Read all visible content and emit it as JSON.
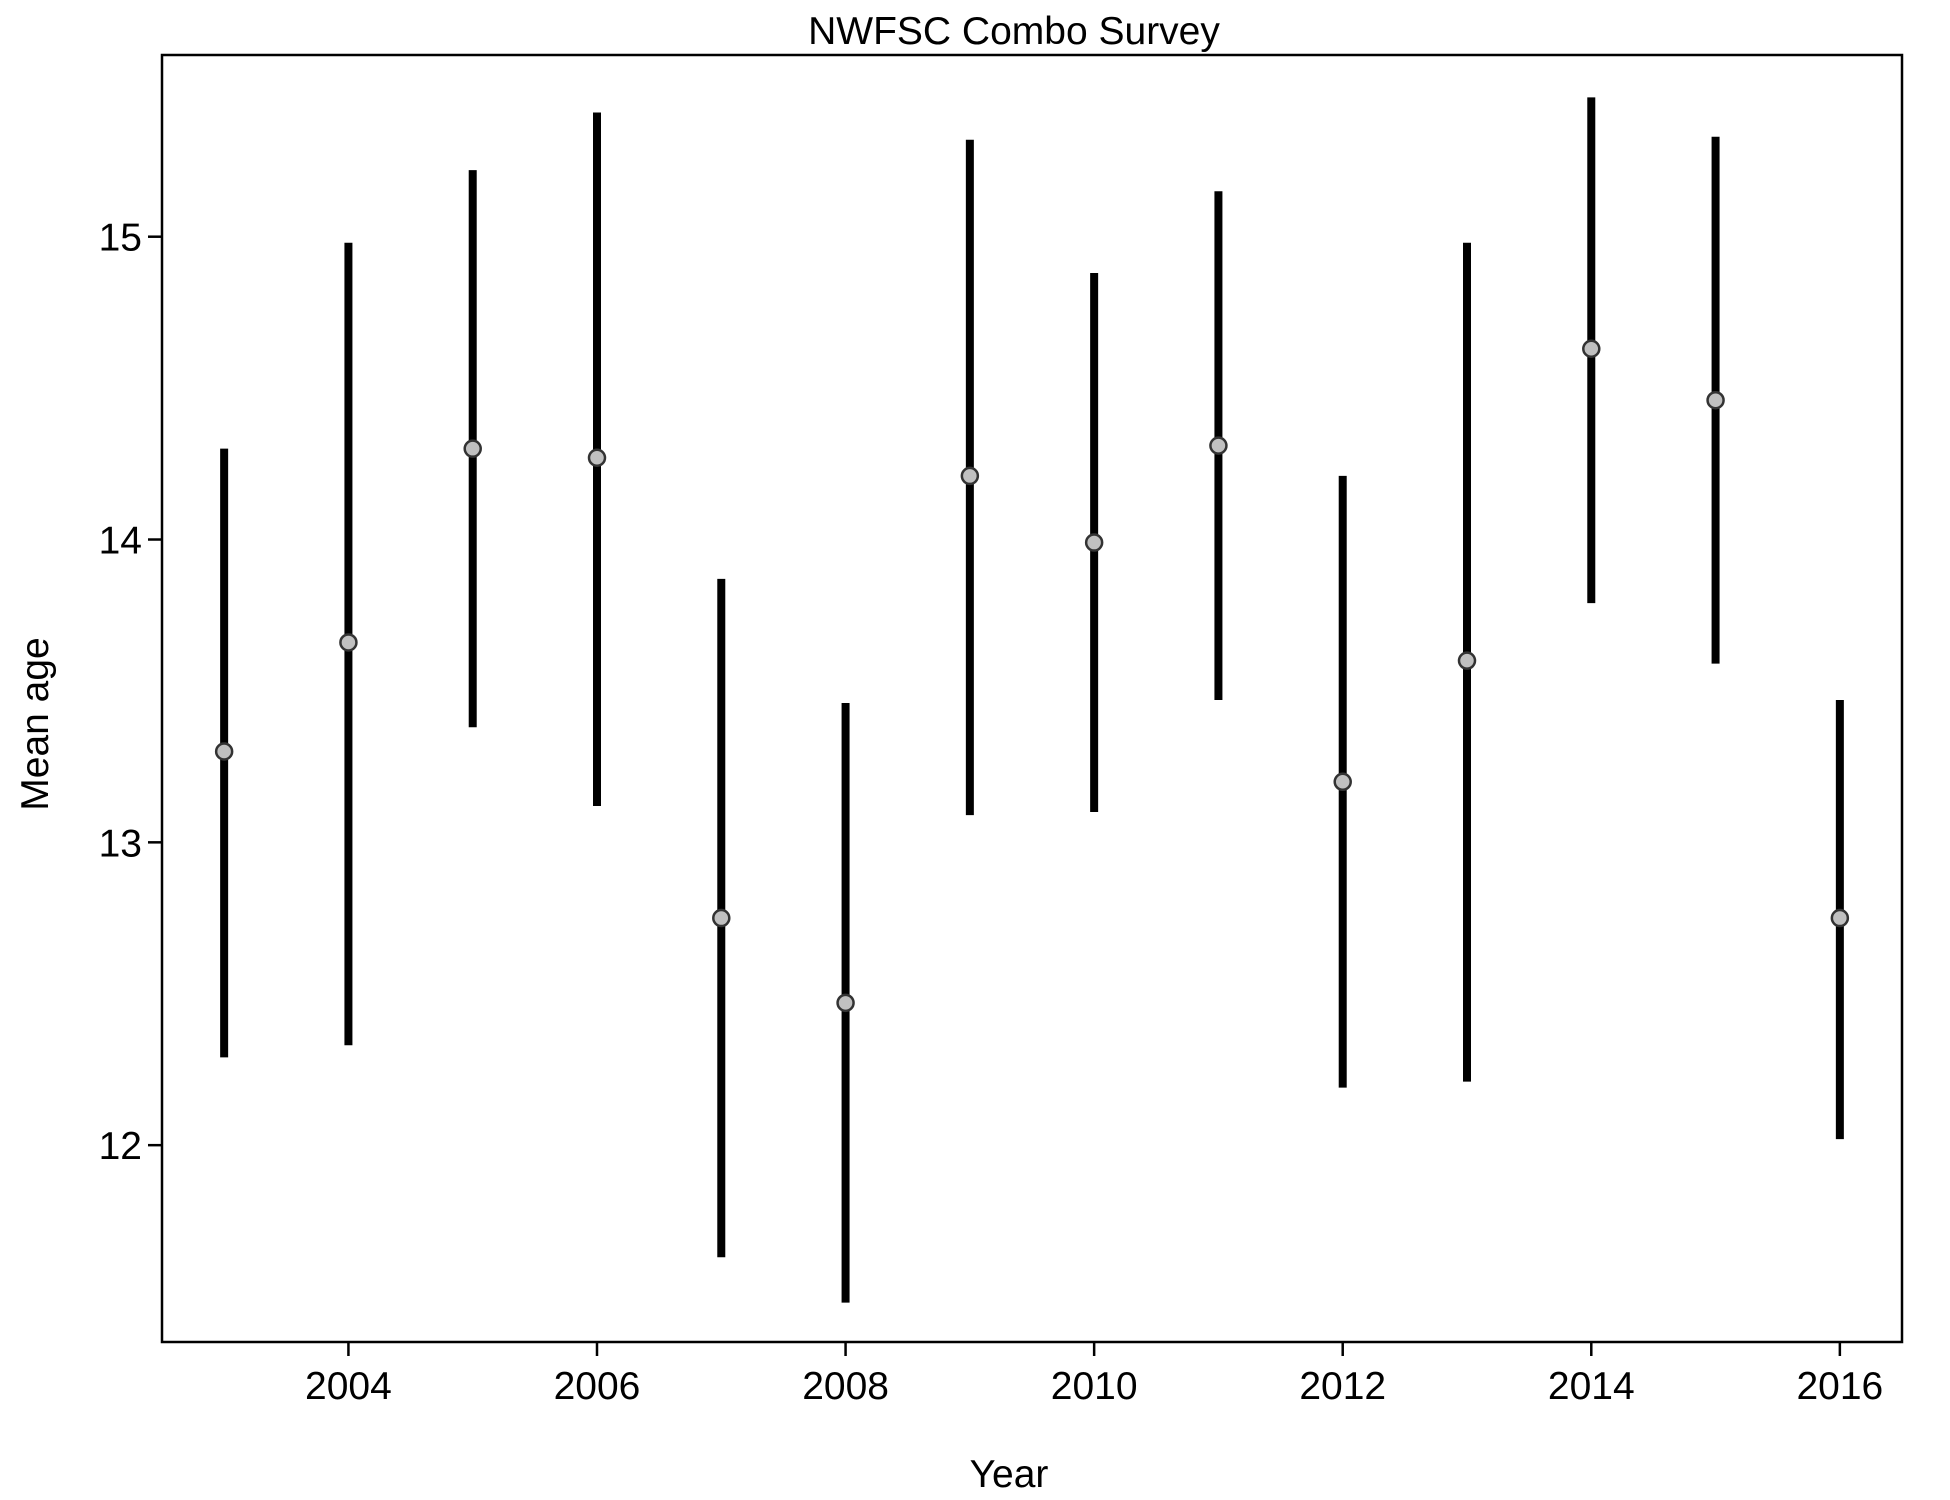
{
  "chart_data": {
    "type": "scatter",
    "title": "NWFSC Combo Survey",
    "xlabel": "Year",
    "ylabel": "Mean age",
    "xlim": [
      2002.5,
      2016.5
    ],
    "ylim": [
      11.35,
      15.6
    ],
    "x_ticks": [
      2004,
      2006,
      2008,
      2010,
      2012,
      2014,
      2016
    ],
    "y_ticks": [
      12,
      13,
      14,
      15
    ],
    "grid": false,
    "legend": "none",
    "colors": {
      "interval": "#000000",
      "point_fill": "#c0c0c0",
      "point_stroke": "#333333"
    },
    "points": [
      {
        "x": 2003,
        "y": 13.3,
        "lower": 12.29,
        "upper": 14.3
      },
      {
        "x": 2004,
        "y": 13.66,
        "lower": 12.33,
        "upper": 14.98
      },
      {
        "x": 2005,
        "y": 14.3,
        "lower": 13.38,
        "upper": 15.22
      },
      {
        "x": 2006,
        "y": 14.27,
        "lower": 13.12,
        "upper": 15.41
      },
      {
        "x": 2007,
        "y": 12.75,
        "lower": 11.63,
        "upper": 13.87
      },
      {
        "x": 2008,
        "y": 12.47,
        "lower": 11.48,
        "upper": 13.46
      },
      {
        "x": 2009,
        "y": 14.21,
        "lower": 13.09,
        "upper": 15.32
      },
      {
        "x": 2010,
        "y": 13.99,
        "lower": 13.1,
        "upper": 14.88
      },
      {
        "x": 2011,
        "y": 14.31,
        "lower": 13.47,
        "upper": 15.15
      },
      {
        "x": 2012,
        "y": 13.2,
        "lower": 12.19,
        "upper": 14.21
      },
      {
        "x": 2013,
        "y": 13.6,
        "lower": 12.21,
        "upper": 14.98
      },
      {
        "x": 2014,
        "y": 14.63,
        "lower": 13.79,
        "upper": 15.46
      },
      {
        "x": 2015,
        "y": 14.46,
        "lower": 13.59,
        "upper": 15.33
      },
      {
        "x": 2016,
        "y": 12.75,
        "lower": 12.02,
        "upper": 13.47
      }
    ]
  }
}
